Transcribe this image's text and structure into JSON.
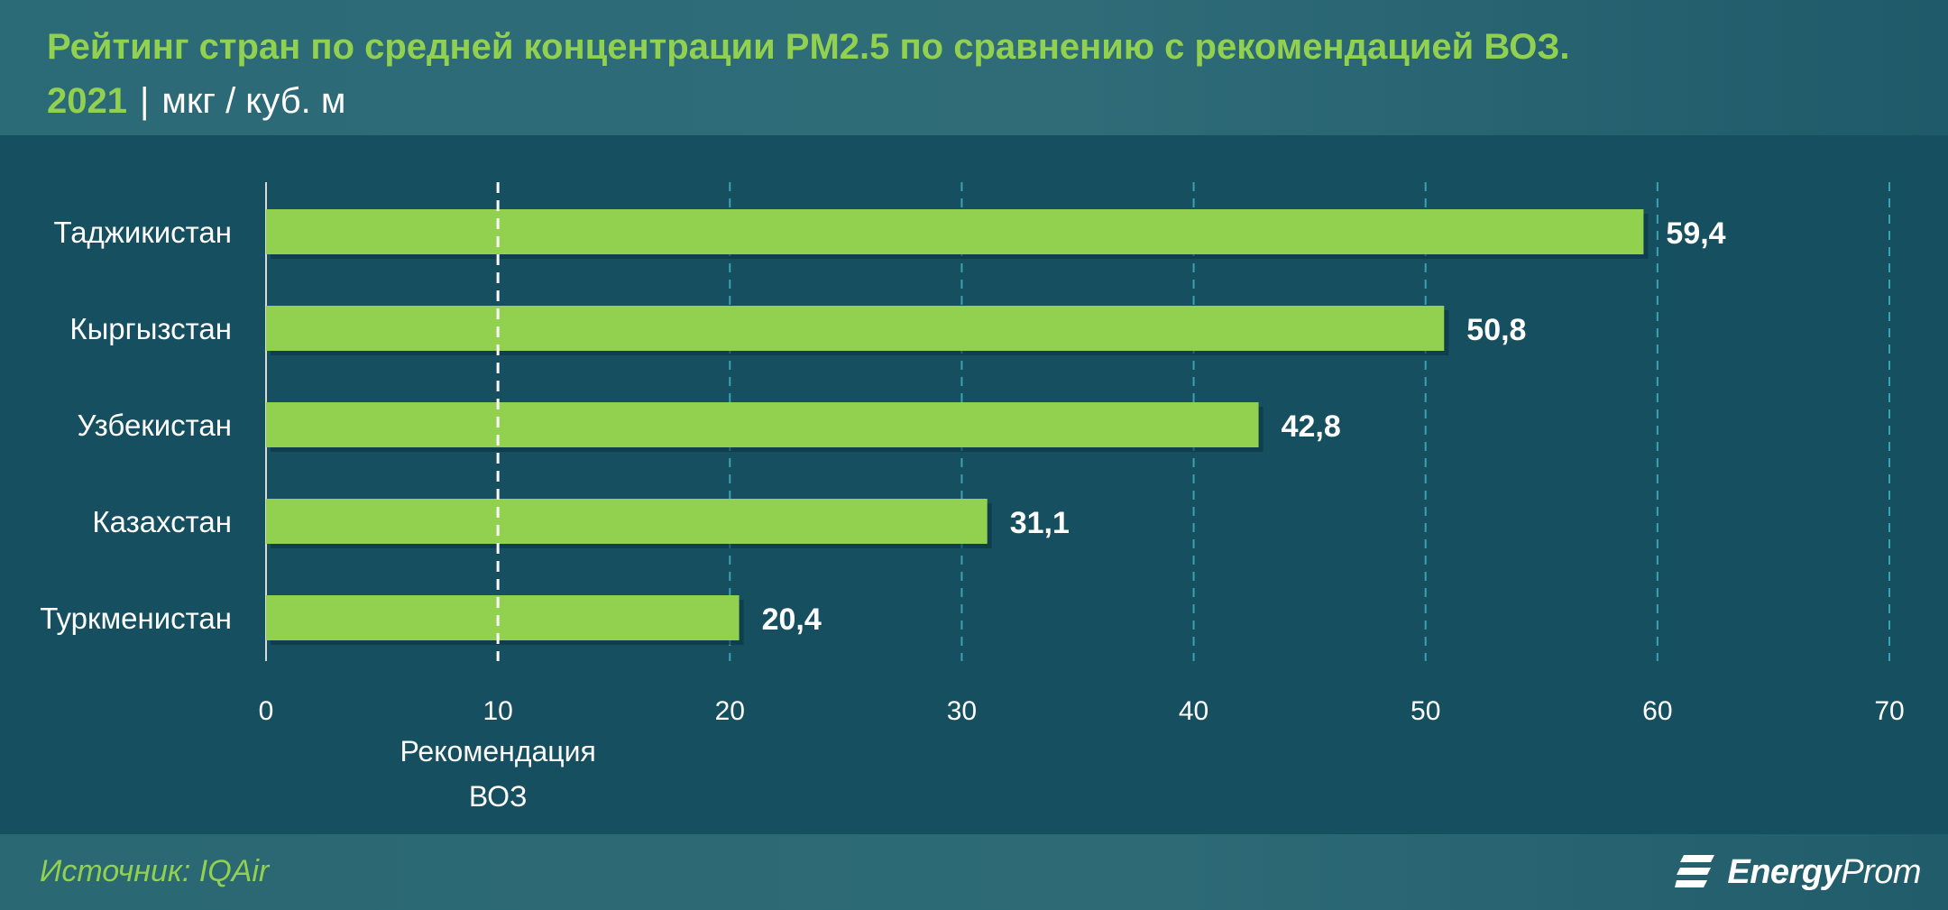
{
  "header": {
    "title": "Рейтинг стран по средней концентрации PM2.5 по сравнению с рекомендацией ВОЗ.",
    "year": "2021",
    "separator": "|",
    "unit": "мкг / куб. м"
  },
  "footer": {
    "source": "Источник: IQAir",
    "logo_bold": "Energy",
    "logo_thin": "Prom",
    "logo_icon": "energyprom-logo-icon"
  },
  "colors": {
    "bar": "#92d050",
    "background": "#154f60",
    "title": "#92d050",
    "grid": "#3aa3b3",
    "reference_line": "#ffffff"
  },
  "chart_data": {
    "type": "bar",
    "orientation": "horizontal",
    "categories": [
      "Таджикистан",
      "Кыргызстан",
      "Узбекистан",
      "Казахстан",
      "Туркменистан"
    ],
    "values": [
      59.4,
      50.8,
      42.8,
      31.1,
      20.4
    ],
    "value_labels": [
      "59,4",
      "50,8",
      "42,8",
      "31,1",
      "20,4"
    ],
    "xlim": [
      0,
      70
    ],
    "xticks": [
      0,
      10,
      20,
      30,
      40,
      50,
      60,
      70
    ],
    "grid": true,
    "reference_line": {
      "value": 10,
      "label_lines": [
        "Рекомендация",
        "ВОЗ"
      ]
    }
  }
}
